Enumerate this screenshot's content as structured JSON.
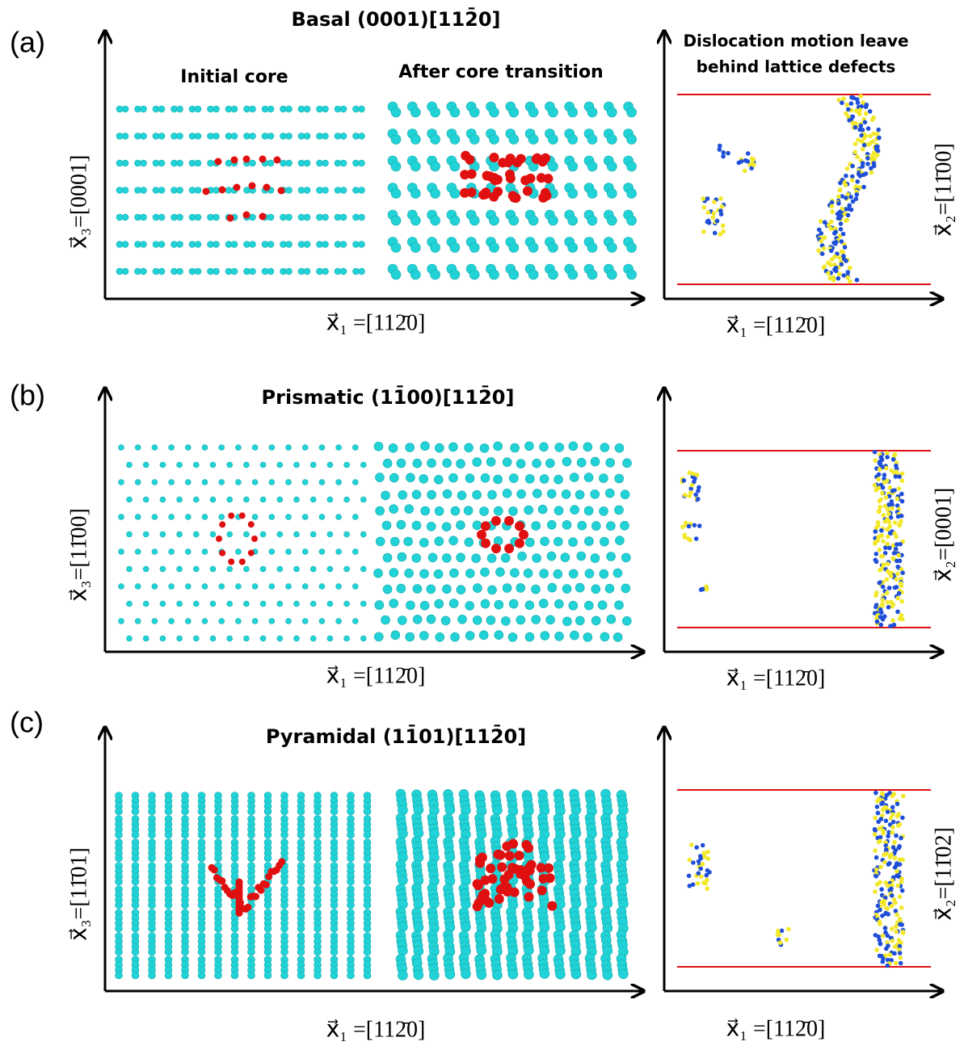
{
  "panels": [
    {
      "label": "(a)",
      "title": "Basal (0001)[112̄0]",
      "subtitles": [
        "Initial core",
        "After core transition"
      ],
      "left": {
        "x_axis": "x⃗₁ =[112̄0]",
        "y_axis": "x⃗₃=[0001]"
      },
      "right": {
        "title_lines": [
          "Dislocation motion leave",
          "behind lattice defects"
        ],
        "x_axis": "x⃗₁ =[112̄0]",
        "y_axis": "x⃗₂=[11̄00]"
      }
    },
    {
      "label": "(b)",
      "title": "Prismatic (11̄00)[112̄0]",
      "left": {
        "x_axis": "x⃗₁ =[112̄0]",
        "y_axis": "x⃗₃=[11̄00]"
      },
      "right": {
        "x_axis": "x⃗₁ =[112̄0]",
        "y_axis": "x⃗₂=[0001]"
      }
    },
    {
      "label": "(c)",
      "title": "Pyramidal (11̄01)[112̄0]",
      "left": {
        "x_axis": "x⃗₁ =[112̄0]",
        "y_axis": "x⃗₃=[11̄01]"
      },
      "right": {
        "x_axis": "x⃗₁ =[112̄0]",
        "y_axis": "x⃗₂=[11̄02]"
      }
    }
  ]
}
